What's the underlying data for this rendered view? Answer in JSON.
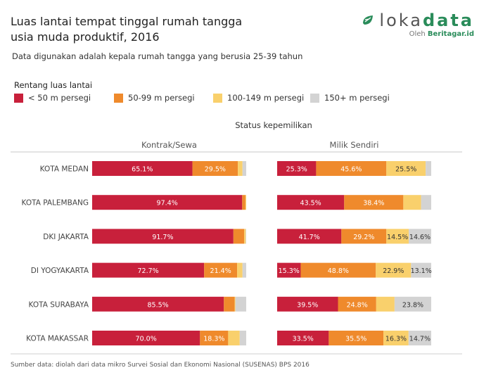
{
  "header": {
    "title_line1": "Luas lantai tempat tinggal rumah tangga",
    "title_line2": "usia muda produktif, 2016",
    "subtitle": "Data digunakan adalah kepala rumah tangga yang berusia 25-39 tahun"
  },
  "brand": {
    "word_light": "loka",
    "word_bold": "data",
    "by_prefix": "Oleh",
    "by_name": "Beritagar.id"
  },
  "footer": {
    "source": "Sumber data: diolah dari data mikro Survei Sosial dan Ekonomi Nasional (SUSENAS) BPS 2016"
  },
  "chart_data": {
    "type": "bar",
    "orientation": "horizontal-stacked-100",
    "title": "Luas lantai tempat tinggal rumah tangga usia muda produktif, 2016",
    "legend_title": "Rentang luas lantai",
    "column_header": "Status kepemilikan",
    "categories": [
      "KOTA MEDAN",
      "KOTA PALEMBANG",
      "DKI JAKARTA",
      "DI YOGYAKARTA",
      "KOTA SURABAYA",
      "KOTA MAKASSAR"
    ],
    "xlim": [
      0,
      100
    ],
    "panels": [
      {
        "name": "Kontrak/Sewa",
        "series": [
          {
            "name": "< 50 m persegi",
            "color": "#c8203b",
            "values": [
              65.1,
              97.4,
              91.7,
              72.7,
              85.5,
              70.0
            ],
            "labels": [
              "65.1%",
              "97.4%",
              "91.7%",
              "72.7%",
              "85.5%",
              "70.0%"
            ]
          },
          {
            "name": "50-99 m persegi",
            "color": "#ef8a2c",
            "values": [
              29.5,
              2.1,
              7.0,
              21.4,
              7.0,
              18.3
            ],
            "labels": [
              "29.5%",
              "",
              "",
              "21.4%",
              "",
              "18.3%"
            ]
          },
          {
            "name": "100-149 m persegi",
            "color": "#f9d06c",
            "values": [
              3.0,
              0.5,
              1.0,
              3.5,
              0.5,
              7.5
            ],
            "labels": [
              "",
              "",
              "",
              "",
              "",
              ""
            ]
          },
          {
            "name": "150+ m persegi",
            "color": "#d3d3d3",
            "values": [
              2.4,
              0.0,
              0.3,
              2.4,
              7.0,
              4.2
            ],
            "labels": [
              "",
              "",
              "",
              "",
              "",
              ""
            ]
          }
        ]
      },
      {
        "name": "Milik Sendiri",
        "series": [
          {
            "name": "< 50 m persegi",
            "color": "#c8203b",
            "values": [
              25.3,
              43.5,
              41.7,
              15.3,
              39.5,
              33.5
            ],
            "labels": [
              "25.3%",
              "43.5%",
              "41.7%",
              "15.3%",
              "39.5%",
              "33.5%"
            ]
          },
          {
            "name": "50-99 m persegi",
            "color": "#ef8a2c",
            "values": [
              45.6,
              38.4,
              29.2,
              48.8,
              24.8,
              35.5
            ],
            "labels": [
              "45.6%",
              "38.4%",
              "29.2%",
              "48.8%",
              "24.8%",
              "35.5%"
            ]
          },
          {
            "name": "100-149 m persegi",
            "color": "#f9d06c",
            "values": [
              25.5,
              11.5,
              14.5,
              22.9,
              11.9,
              16.3
            ],
            "labels": [
              "25.5%",
              "",
              "14.5%",
              "22.9%",
              "",
              "16.3%"
            ]
          },
          {
            "name": "150+ m persegi",
            "color": "#d3d3d3",
            "values": [
              3.6,
              6.6,
              14.6,
              13.1,
              23.8,
              14.7
            ],
            "labels": [
              "",
              "",
              "14.6%",
              "13.1%",
              "23.8%",
              "14.7%"
            ]
          }
        ]
      }
    ]
  }
}
